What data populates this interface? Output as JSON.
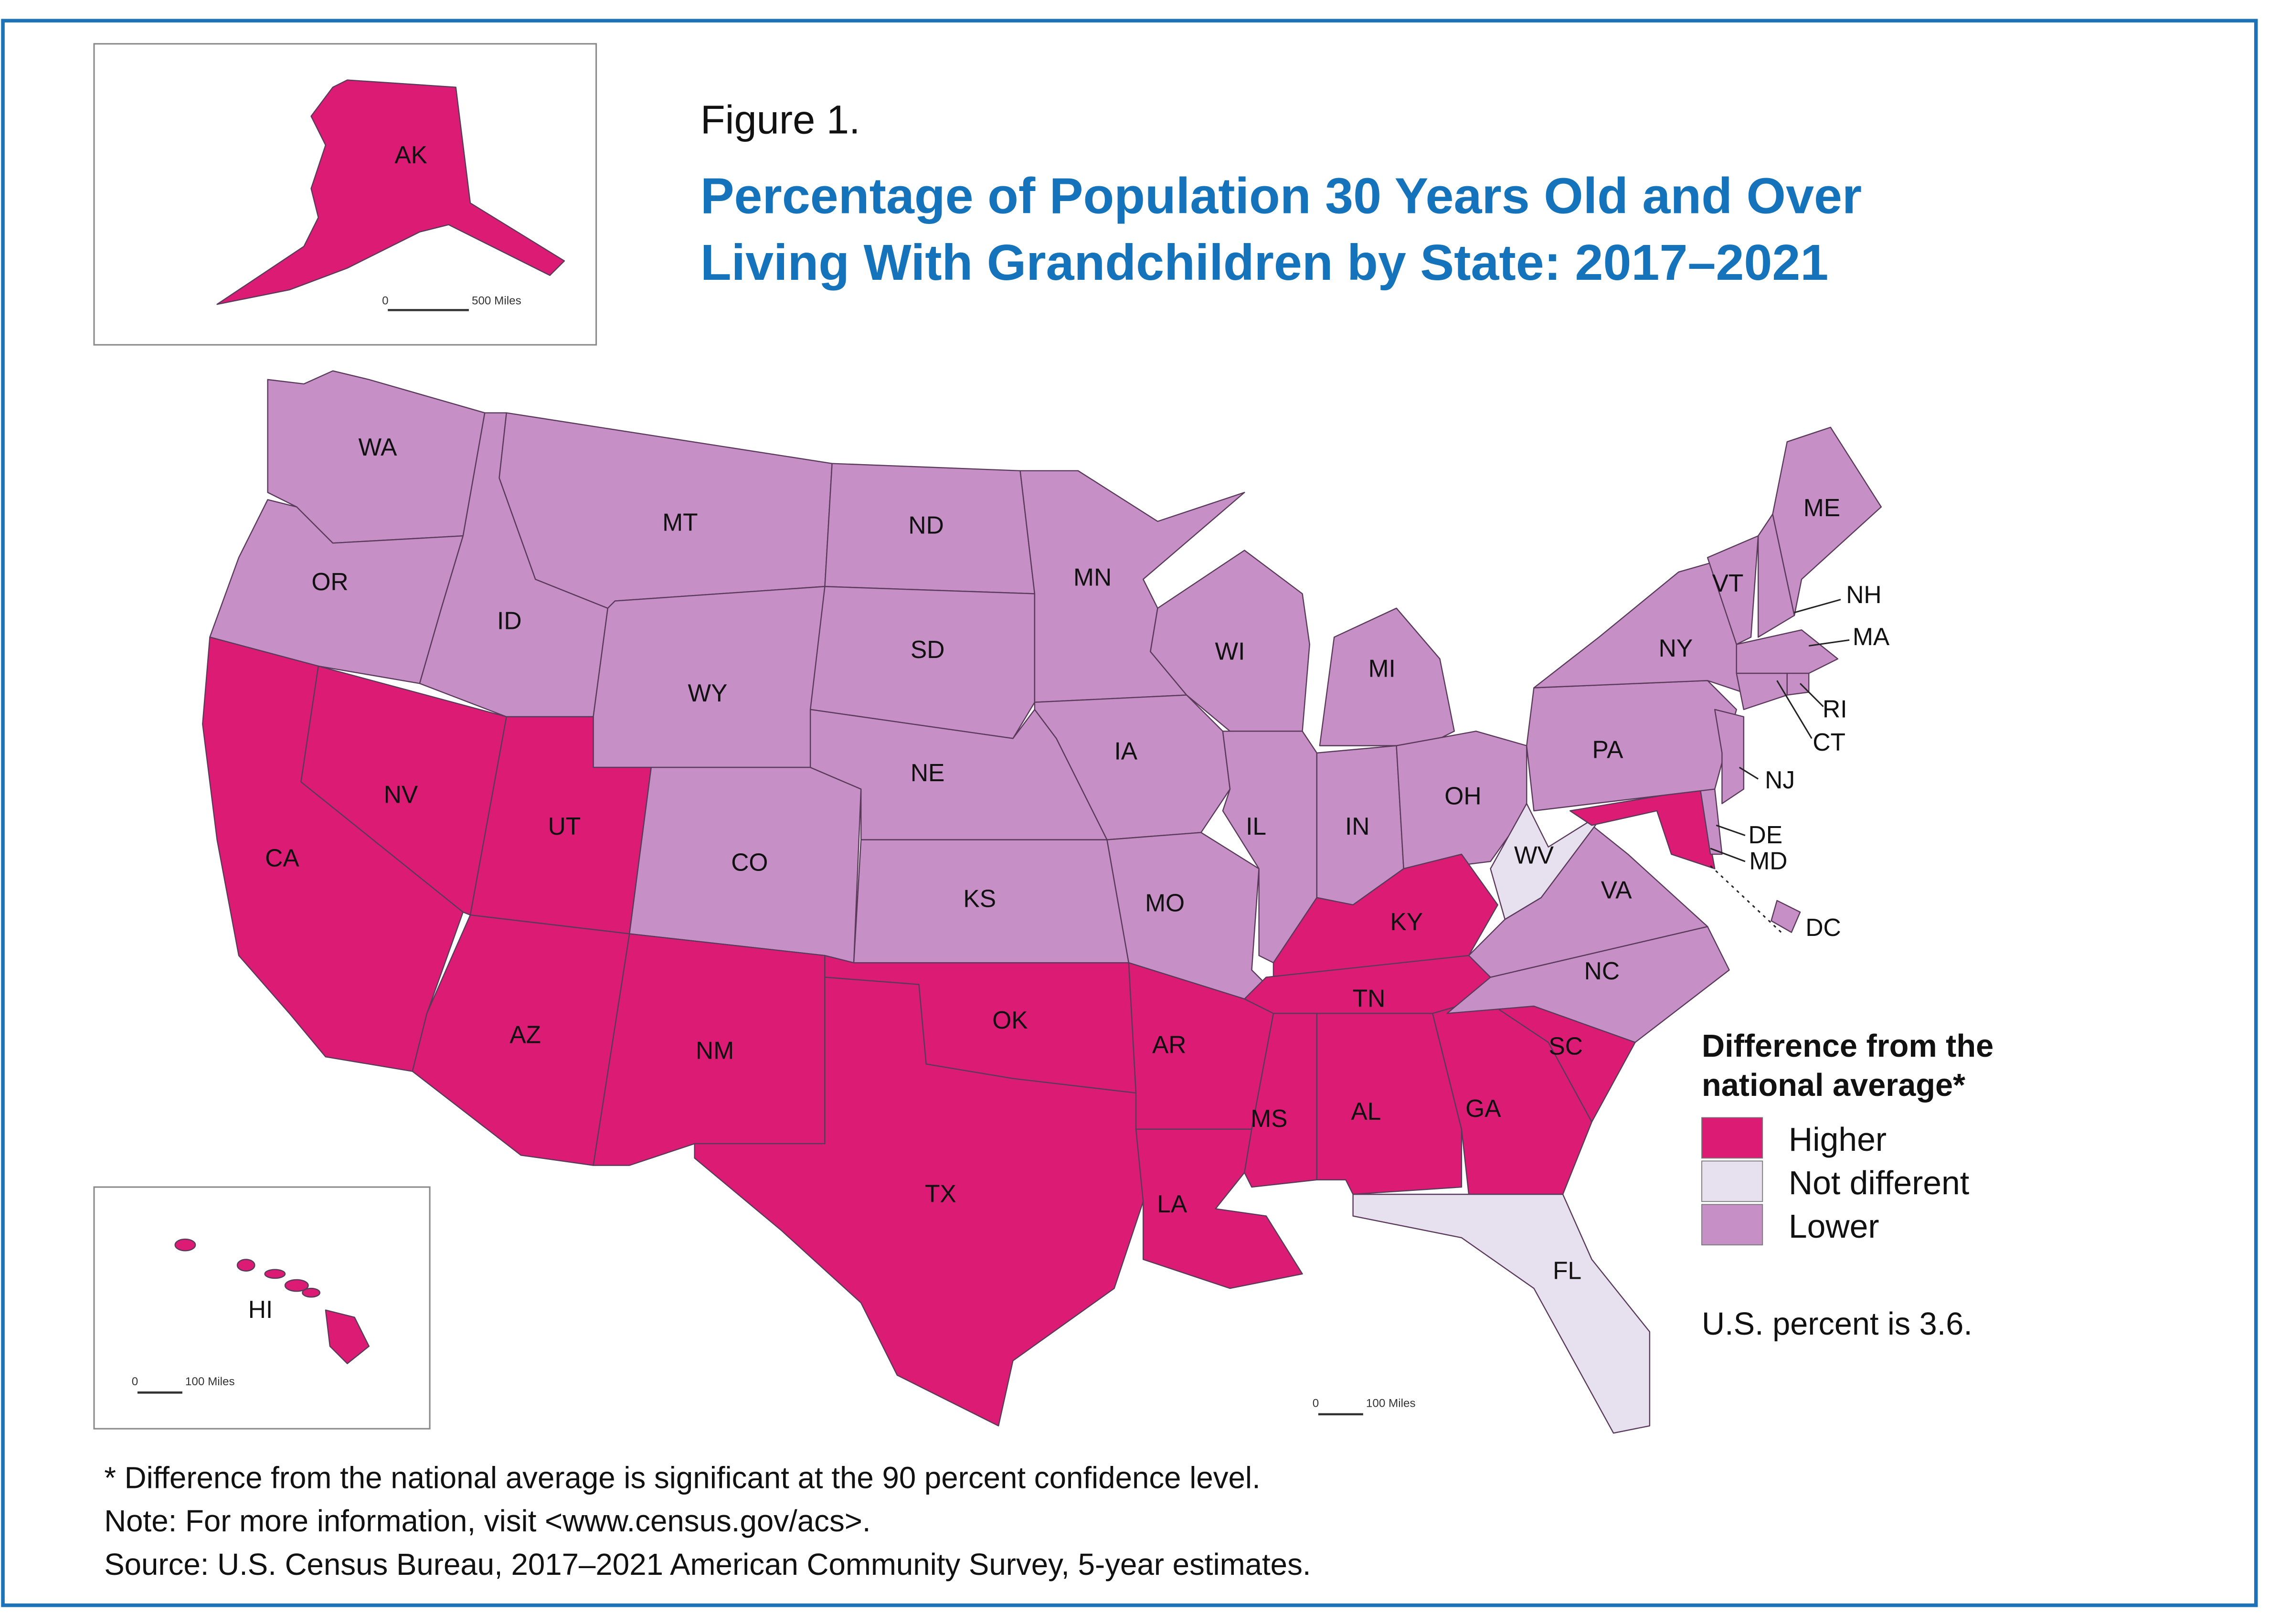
{
  "figure_label": "Figure 1.",
  "title_line1": "Percentage of Population 30 Years Old and Over",
  "title_line2": "Living With Grandchildren by State: 2017–2021",
  "legend": {
    "title_line1": "Difference from the",
    "title_line2": "national average*",
    "items": [
      {
        "label": "Higher",
        "color": "#dc1c74"
      },
      {
        "label": "Not different",
        "color": "#e7e0ee"
      },
      {
        "label": "Lower",
        "color": "#c690c6"
      }
    ],
    "us_note": "U.S. percent is 3.6."
  },
  "states": [
    {
      "code": "WA",
      "category": "Lower"
    },
    {
      "code": "OR",
      "category": "Lower"
    },
    {
      "code": "CA",
      "category": "Higher"
    },
    {
      "code": "NV",
      "category": "Higher"
    },
    {
      "code": "ID",
      "category": "Lower"
    },
    {
      "code": "MT",
      "category": "Lower"
    },
    {
      "code": "WY",
      "category": "Lower"
    },
    {
      "code": "UT",
      "category": "Higher"
    },
    {
      "code": "CO",
      "category": "Lower"
    },
    {
      "code": "AZ",
      "category": "Higher"
    },
    {
      "code": "NM",
      "category": "Higher"
    },
    {
      "code": "ND",
      "category": "Lower"
    },
    {
      "code": "SD",
      "category": "Lower"
    },
    {
      "code": "NE",
      "category": "Lower"
    },
    {
      "code": "KS",
      "category": "Lower"
    },
    {
      "code": "OK",
      "category": "Higher"
    },
    {
      "code": "TX",
      "category": "Higher"
    },
    {
      "code": "MN",
      "category": "Lower"
    },
    {
      "code": "IA",
      "category": "Lower"
    },
    {
      "code": "MO",
      "category": "Lower"
    },
    {
      "code": "AR",
      "category": "Higher"
    },
    {
      "code": "LA",
      "category": "Higher"
    },
    {
      "code": "WI",
      "category": "Lower"
    },
    {
      "code": "IL",
      "category": "Lower"
    },
    {
      "code": "MI",
      "category": "Lower"
    },
    {
      "code": "IN",
      "category": "Lower"
    },
    {
      "code": "OH",
      "category": "Lower"
    },
    {
      "code": "KY",
      "category": "Higher"
    },
    {
      "code": "TN",
      "category": "Higher"
    },
    {
      "code": "MS",
      "category": "Higher"
    },
    {
      "code": "AL",
      "category": "Higher"
    },
    {
      "code": "GA",
      "category": "Higher"
    },
    {
      "code": "FL",
      "category": "Not different"
    },
    {
      "code": "SC",
      "category": "Higher"
    },
    {
      "code": "NC",
      "category": "Lower"
    },
    {
      "code": "VA",
      "category": "Lower"
    },
    {
      "code": "WV",
      "category": "Not different"
    },
    {
      "code": "MD",
      "category": "Higher"
    },
    {
      "code": "DE",
      "category": "Lower"
    },
    {
      "code": "DC",
      "category": "Lower"
    },
    {
      "code": "PA",
      "category": "Lower"
    },
    {
      "code": "NJ",
      "category": "Lower"
    },
    {
      "code": "NY",
      "category": "Lower"
    },
    {
      "code": "VT",
      "category": "Lower"
    },
    {
      "code": "NH",
      "category": "Lower"
    },
    {
      "code": "ME",
      "category": "Lower"
    },
    {
      "code": "MA",
      "category": "Lower"
    },
    {
      "code": "CT",
      "category": "Lower"
    },
    {
      "code": "RI",
      "category": "Lower"
    },
    {
      "code": "AK",
      "category": "Higher"
    },
    {
      "code": "HI",
      "category": "Higher"
    }
  ],
  "scale_bars": [
    {
      "start": "0",
      "end": "500 Miles"
    },
    {
      "start": "0",
      "end": "100 Miles"
    },
    {
      "start": "0",
      "end": "100 Miles"
    }
  ],
  "footnotes": [
    "* Difference from the national average is significant at the 90 percent confidence level.",
    "Note: For more information, visit <www.census.gov/acs>.",
    "Source: U.S. Census Bureau, 2017–2021 American Community Survey, 5-year estimates."
  ]
}
